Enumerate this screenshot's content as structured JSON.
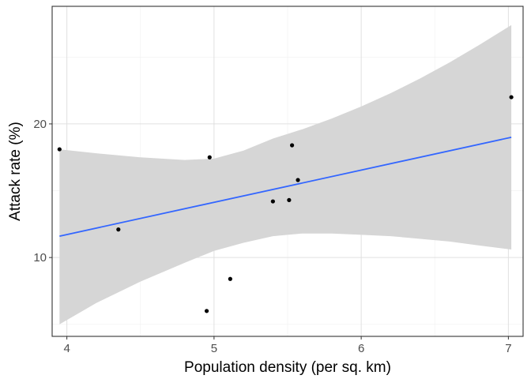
{
  "chart_data": {
    "type": "scatter",
    "title": "",
    "xlabel": "Population density (per sq. km)",
    "ylabel": "Attack rate (%)",
    "xlim": [
      3.9,
      7.1
    ],
    "ylim": [
      4.1,
      28.8
    ],
    "x_ticks": [
      4,
      5,
      6,
      7
    ],
    "y_ticks": [
      10,
      20
    ],
    "x_tick_labels": [
      "4",
      "5",
      "6",
      "7"
    ],
    "y_tick_labels": [
      "10",
      "20"
    ],
    "x_minor": [
      4.5,
      5.5,
      6.5
    ],
    "y_minor": [
      5,
      15,
      25
    ],
    "grid": true,
    "legend": "none",
    "points": [
      {
        "x": 3.95,
        "y": 18.1
      },
      {
        "x": 4.35,
        "y": 12.1
      },
      {
        "x": 4.95,
        "y": 6.0
      },
      {
        "x": 4.97,
        "y": 17.5
      },
      {
        "x": 5.11,
        "y": 8.4
      },
      {
        "x": 5.4,
        "y": 14.2
      },
      {
        "x": 5.51,
        "y": 14.3
      },
      {
        "x": 5.53,
        "y": 18.4
      },
      {
        "x": 5.57,
        "y": 15.8
      },
      {
        "x": 7.02,
        "y": 22.0
      }
    ],
    "trend_line": {
      "method": "linear",
      "x": [
        3.95,
        7.02
      ],
      "y": [
        11.6,
        19.0
      ]
    },
    "confidence_band": {
      "x": [
        3.95,
        4.2,
        4.5,
        4.8,
        5.0,
        5.2,
        5.4,
        5.6,
        5.8,
        6.0,
        6.2,
        6.4,
        6.6,
        6.8,
        7.02
      ],
      "upper": [
        18.1,
        17.8,
        17.5,
        17.3,
        17.4,
        18.0,
        18.9,
        19.6,
        20.4,
        21.3,
        22.3,
        23.4,
        24.6,
        25.9,
        27.4
      ],
      "lower": [
        5.0,
        6.6,
        8.2,
        9.6,
        10.5,
        11.1,
        11.6,
        11.8,
        11.8,
        11.7,
        11.6,
        11.4,
        11.2,
        10.9,
        10.6
      ]
    },
    "colors": {
      "point": "#000000",
      "line": "#3366FF",
      "band": "#D6D6D6",
      "grid_major": "#E0E0E0",
      "grid_minor": "#F0F0F0",
      "panel_border": "#333333"
    }
  }
}
